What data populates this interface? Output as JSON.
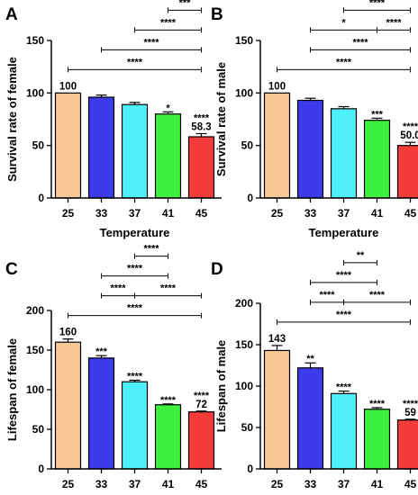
{
  "colors": [
    "#f9c894",
    "#3b3bea",
    "#4ef1f7",
    "#3df03f",
    "#f13c3a"
  ],
  "chart_data": [
    {
      "panel": "A",
      "type": "bar",
      "xlabel": "Temperature",
      "ylabel": "Survival rate of female",
      "categories": [
        "25",
        "33",
        "37",
        "41",
        "45"
      ],
      "values": [
        100,
        96,
        89,
        80,
        58.3
      ],
      "errors": [
        0,
        2,
        2,
        2,
        3
      ],
      "ylim": [
        0,
        150
      ],
      "yticks": [
        0,
        50,
        100,
        150
      ],
      "bar_labels": [
        {
          "index": 0,
          "lines": [
            "100"
          ]
        },
        {
          "index": 3,
          "lines": [
            "*"
          ]
        },
        {
          "index": 4,
          "lines": [
            "****",
            "58.3"
          ]
        }
      ],
      "brackets": [
        {
          "from": 3,
          "to": 4,
          "level": 2,
          "label": "***"
        },
        {
          "from": 2,
          "to": 4,
          "level": 1,
          "label": "****"
        },
        {
          "from": 1,
          "to": 4,
          "level": 0,
          "label": "****"
        }
      ],
      "global_bracket": {
        "from": 0,
        "to": 4,
        "label": "****"
      }
    },
    {
      "panel": "B",
      "type": "bar",
      "xlabel": "Temperature",
      "ylabel": "Survival rate of male",
      "categories": [
        "25",
        "33",
        "37",
        "41",
        "45"
      ],
      "values": [
        100,
        93,
        85,
        74,
        50.0
      ],
      "errors": [
        0,
        2,
        2,
        2,
        3
      ],
      "ylim": [
        0,
        150
      ],
      "yticks": [
        0,
        50,
        100,
        150
      ],
      "bar_labels": [
        {
          "index": 0,
          "lines": [
            "100"
          ]
        },
        {
          "index": 3,
          "lines": [
            "***"
          ]
        },
        {
          "index": 4,
          "lines": [
            "****",
            "50.0"
          ]
        }
      ],
      "brackets": [
        {
          "from": 2,
          "to": 4,
          "level": 2,
          "label": "****"
        },
        {
          "from": 1,
          "to": 3,
          "level": 1,
          "label": "*"
        },
        {
          "from": 3,
          "to": 4,
          "level": 1,
          "label": "****"
        },
        {
          "from": 1,
          "to": 4,
          "level": 0,
          "label": "****"
        }
      ],
      "global_bracket": {
        "from": 0,
        "to": 4,
        "label": "****"
      }
    },
    {
      "panel": "C",
      "type": "bar",
      "xlabel": "Temperature",
      "ylabel": "Lifespan of female",
      "categories": [
        "25",
        "33",
        "37",
        "41",
        "45"
      ],
      "values": [
        160,
        140,
        110,
        81,
        72
      ],
      "errors": [
        4,
        3,
        2,
        1,
        1
      ],
      "ylim": [
        0,
        200
      ],
      "yticks": [
        0,
        50,
        100,
        150,
        200
      ],
      "bar_labels": [
        {
          "index": 0,
          "lines": [
            "160"
          ]
        },
        {
          "index": 1,
          "lines": [
            "***"
          ]
        },
        {
          "index": 2,
          "lines": [
            "****"
          ]
        },
        {
          "index": 3,
          "lines": [
            "****"
          ]
        },
        {
          "index": 4,
          "lines": [
            "****",
            "72"
          ]
        }
      ],
      "brackets": [
        {
          "from": 2,
          "to": 3,
          "level": 2,
          "label": "****"
        },
        {
          "from": 1,
          "to": 3,
          "level": 1,
          "label": "****"
        },
        {
          "from": 1,
          "to": 2,
          "level": 0,
          "label": "****"
        },
        {
          "from": 2,
          "to": 4,
          "level": 0,
          "label": "****"
        }
      ],
      "global_bracket": {
        "from": 0,
        "to": 4,
        "label": "****"
      }
    },
    {
      "panel": "D",
      "type": "bar",
      "xlabel": "Temperature",
      "ylabel": "Lifespan of male",
      "categories": [
        "25",
        "33",
        "37",
        "41",
        "45"
      ],
      "values": [
        143,
        122,
        91,
        72,
        59
      ],
      "errors": [
        6,
        6,
        3,
        2,
        1
      ],
      "ylim": [
        0,
        200
      ],
      "yticks": [
        0,
        50,
        100,
        150,
        200
      ],
      "bar_labels": [
        {
          "index": 0,
          "lines": [
            "143"
          ]
        },
        {
          "index": 1,
          "lines": [
            "**"
          ]
        },
        {
          "index": 2,
          "lines": [
            "****"
          ]
        },
        {
          "index": 3,
          "lines": [
            "****"
          ]
        },
        {
          "index": 4,
          "lines": [
            "****",
            "59"
          ]
        }
      ],
      "brackets": [
        {
          "from": 2,
          "to": 3,
          "level": 2,
          "label": "**"
        },
        {
          "from": 1,
          "to": 3,
          "level": 1,
          "label": "****"
        },
        {
          "from": 1,
          "to": 2,
          "level": 0,
          "label": "****"
        },
        {
          "from": 2,
          "to": 4,
          "level": 0,
          "label": "****"
        }
      ],
      "global_bracket": {
        "from": 0,
        "to": 4,
        "label": "****"
      }
    }
  ]
}
